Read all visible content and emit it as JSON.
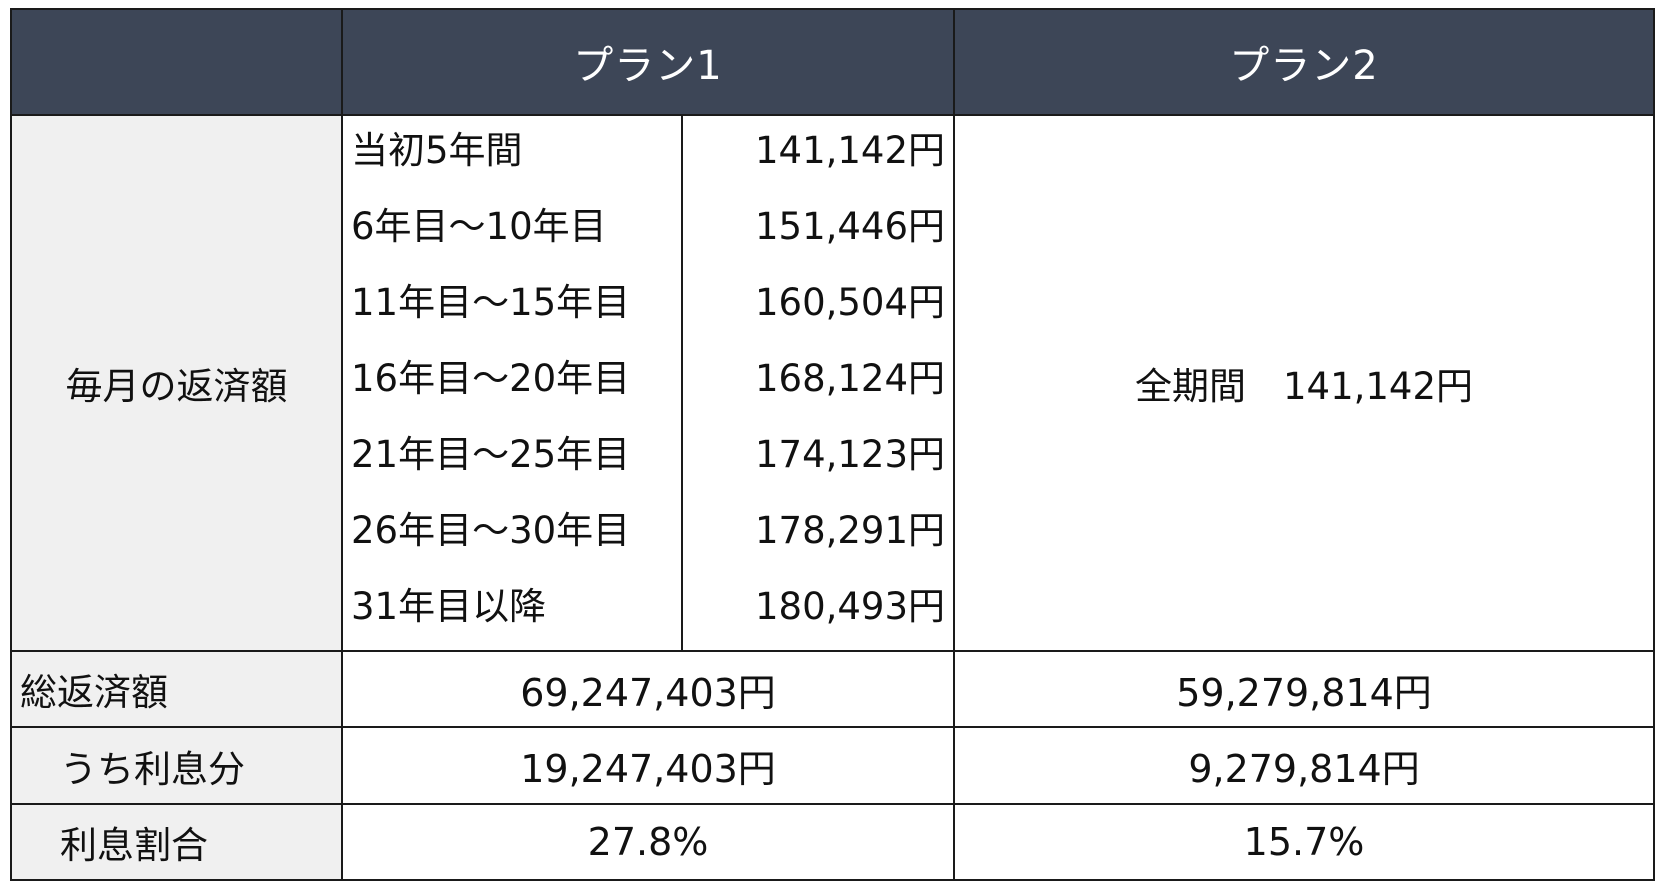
{
  "header": {
    "plan1": "プラン1",
    "plan2": "プラン2"
  },
  "monthly": {
    "label": "毎月の返済額",
    "plan1_rows": [
      {
        "period": "当初5年間",
        "amount": "141,142円"
      },
      {
        "period": "6年目～10年目",
        "amount": "151,446円"
      },
      {
        "period": "11年目～15年目",
        "amount": "160,504円"
      },
      {
        "period": "16年目～20年目",
        "amount": "168,124円"
      },
      {
        "period": "21年目～25年目",
        "amount": "174,123円"
      },
      {
        "period": "26年目～30年目",
        "amount": "178,291円"
      },
      {
        "period": "31年目以降",
        "amount": "180,493円"
      }
    ],
    "plan2_text": "全期間　141,142円"
  },
  "total": {
    "label": "総返済額",
    "plan1": "69,247,403円",
    "plan2": "59,279,814円"
  },
  "interest": {
    "label": "うち利息分",
    "plan1": "19,247,403円",
    "plan2": "9,279,814円"
  },
  "ratio": {
    "label": "利息割合",
    "plan1": "27.8%",
    "plan2": "15.7%"
  },
  "colors": {
    "header_bg": "#3d4657",
    "label_bg": "#f0f0f0",
    "border": "#1a1a1a"
  }
}
